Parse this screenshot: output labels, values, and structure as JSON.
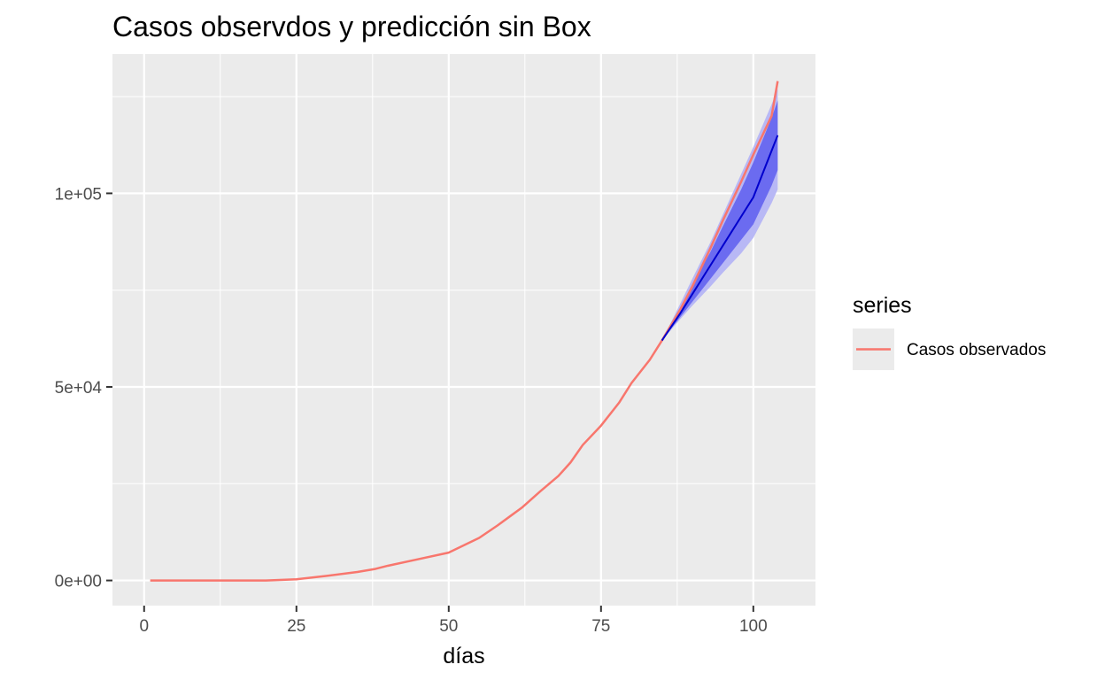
{
  "chart_data": {
    "type": "line",
    "title": "Casos observdos y predicción sin Box",
    "xlabel": "días",
    "ylabel": "",
    "xlim": [
      -5.2,
      110.2
    ],
    "ylim": [
      -6500,
      136000
    ],
    "x_ticks": [
      0,
      25,
      50,
      75,
      100
    ],
    "x_tick_labels": [
      "0",
      "25",
      "50",
      "75",
      "100"
    ],
    "y_ticks": [
      0,
      50000,
      100000
    ],
    "y_tick_labels": [
      "0e+00",
      "5e+04",
      "1e+05"
    ],
    "grid": true,
    "legend": {
      "title": "series",
      "position": "right",
      "entries": [
        "Casos observados"
      ]
    },
    "colors": {
      "observed": "#f8766d",
      "forecast_mean": "#0000cd",
      "band_80": "#6b6bf0",
      "band_95": "#b8b8f5",
      "panel": "#ebebeb",
      "grid": "#ffffff"
    },
    "series": [
      {
        "name": "Casos observados",
        "x": [
          1,
          5,
          10,
          15,
          20,
          25,
          30,
          35,
          38,
          40,
          45,
          50,
          55,
          58,
          60,
          62,
          65,
          68,
          70,
          72,
          75,
          78,
          80,
          83,
          85,
          88,
          90,
          93,
          95,
          98,
          100,
          103,
          104
        ],
        "values": [
          0,
          0,
          0,
          0,
          0,
          300,
          1200,
          2200,
          3000,
          3800,
          5500,
          7200,
          11000,
          14200,
          16500,
          18800,
          23000,
          27000,
          30500,
          35000,
          40000,
          46000,
          51000,
          57000,
          62000,
          70000,
          76000,
          86000,
          93000,
          103000,
          110000,
          120000,
          129000
        ]
      }
    ],
    "forecast": {
      "x": [
        85,
        88,
        90,
        93,
        95,
        98,
        100,
        103,
        104
      ],
      "mean": [
        62000,
        69000,
        74000,
        81500,
        86500,
        94000,
        99000,
        111000,
        115000
      ],
      "lo80": [
        62000,
        68000,
        72000,
        78000,
        82000,
        88000,
        92000,
        102000,
        106000
      ],
      "hi80": [
        62000,
        70500,
        76500,
        85000,
        91500,
        101000,
        108000,
        119500,
        124000
      ],
      "lo95": [
        62000,
        67500,
        71000,
        76000,
        79500,
        84500,
        88500,
        97500,
        101000
      ],
      "hi95": [
        62000,
        71500,
        78000,
        87500,
        94500,
        105000,
        112000,
        123000,
        127000
      ]
    }
  }
}
